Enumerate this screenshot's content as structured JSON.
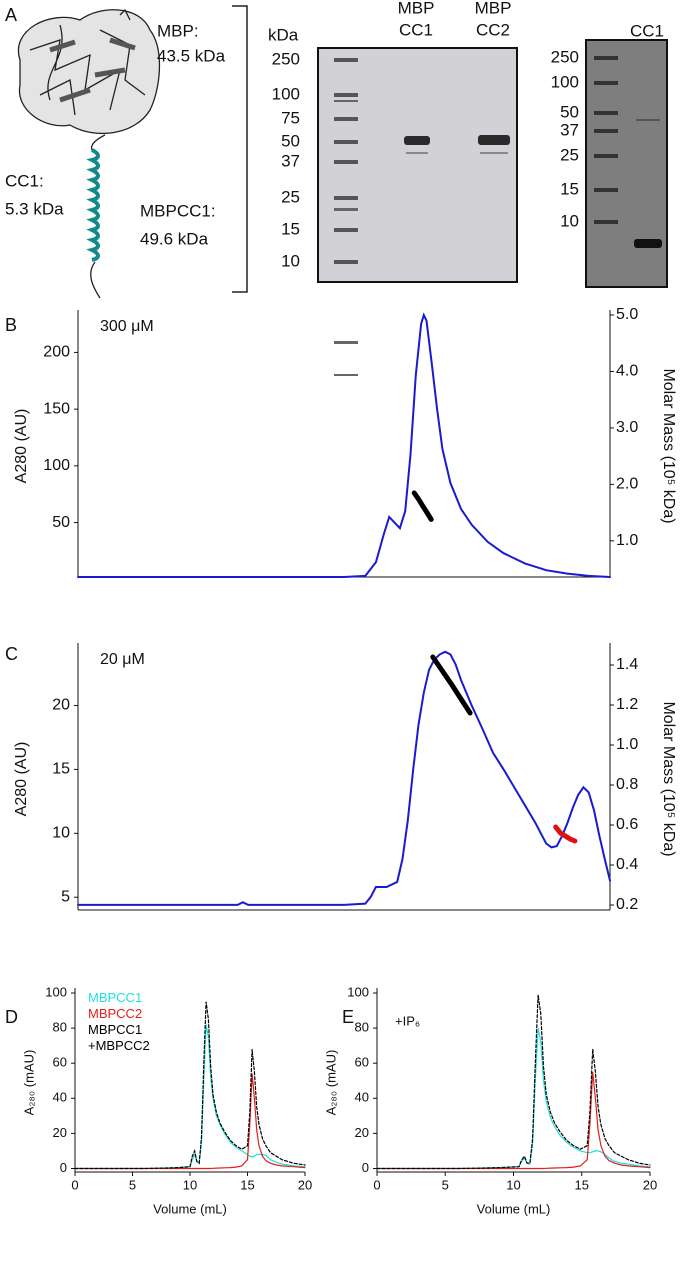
{
  "panel_a": {
    "label": "A",
    "structure_labels": [
      "MBP:",
      "43.5 kDa",
      "CC1:",
      "5.3 kDa",
      "MBPCC1:",
      "49.6 kDa"
    ],
    "gel1": {
      "unit": "kDa",
      "ladder": [
        "250",
        "100",
        "75",
        "50",
        "37",
        "25",
        "15",
        "10"
      ],
      "lanes": [
        [
          "MBP",
          "CC1"
        ],
        [
          "MBP",
          "CC2"
        ]
      ]
    },
    "gel2": {
      "ladder": [
        "250",
        "100",
        "50",
        "37",
        "25",
        "15",
        "10"
      ],
      "lanes": [
        "CC1"
      ]
    }
  },
  "chart_data": [
    {
      "type": "line",
      "panel_label": "B",
      "annotation": "300 μM",
      "ylabel": "A280 (AU)",
      "y2label": "Molar Mass (10⁵ kDa)",
      "xlim": [
        0,
        100
      ],
      "ylim": [
        2,
        233
      ],
      "yticks": [
        50,
        100,
        150,
        200
      ],
      "y2lim": [
        0.36,
        5.0
      ],
      "y2ticks": [
        {
          "value": 1,
          "label": "1.0"
        },
        {
          "value": 2,
          "label": "2.0"
        },
        {
          "value": 3,
          "label": "3.0"
        },
        {
          "value": 4,
          "label": "4.0"
        },
        {
          "value": 5,
          "label": "5.0"
        }
      ],
      "series": [
        {
          "color": "#1a1ad0",
          "x": [
            0,
            10,
            20,
            30,
            40,
            50,
            54,
            56,
            57.5,
            58.5,
            59.5,
            60.5,
            61.5,
            62.5,
            63.5,
            64.5,
            65,
            65.5,
            66.5,
            67.5,
            68.5,
            70,
            72,
            74,
            77,
            80,
            84,
            88,
            92,
            96,
            100
          ],
          "values": [
            2,
            2,
            2,
            2,
            2,
            2,
            3,
            15,
            40,
            55,
            50,
            45,
            60,
            110,
            180,
            225,
            233,
            228,
            190,
            150,
            115,
            85,
            62,
            48,
            33,
            23,
            14,
            8,
            5,
            3,
            2
          ]
        },
        {
          "color": "#000000",
          "axis": "y2",
          "x": [
            63.2,
            64,
            64.8,
            65.6,
            66.4
          ],
          "values": [
            1.85,
            1.74,
            1.62,
            1.5,
            1.38
          ]
        }
      ]
    },
    {
      "type": "line",
      "panel_label": "C",
      "annotation": "20 μM",
      "ylabel": "A280 (AU)",
      "y2label": "Molar Mass (10⁵ kDa)",
      "xlim": [
        0,
        100
      ],
      "ylim": [
        4,
        24.5
      ],
      "yticks": [
        5,
        10,
        15,
        20
      ],
      "y2lim": [
        0.175,
        1.485
      ],
      "y2ticks": [
        0.2,
        0.4,
        0.6,
        0.8,
        {
          "value": 1,
          "label": "1.0"
        },
        1.2,
        1.4
      ],
      "series": [
        {
          "color": "#1a1ad0",
          "x": [
            0,
            10,
            20,
            30,
            31,
            32,
            40,
            50,
            54,
            55,
            56,
            58,
            60,
            61,
            62,
            63,
            64,
            65,
            66,
            67,
            68,
            69,
            70,
            71,
            72,
            74,
            76,
            78,
            80,
            82,
            84,
            86,
            87,
            88,
            89,
            90,
            91,
            92,
            93,
            94,
            95,
            96,
            97,
            98,
            99,
            100
          ],
          "values": [
            4.4,
            4.4,
            4.4,
            4.4,
            4.6,
            4.4,
            4.4,
            4.4,
            4.5,
            5,
            5.8,
            5.8,
            6.2,
            8,
            11,
            15,
            18.5,
            21,
            22.8,
            23.6,
            24,
            24.2,
            24,
            23.2,
            22,
            20,
            18.2,
            16.3,
            15,
            13.6,
            12.2,
            10.8,
            10,
            9.2,
            8.9,
            9,
            9.8,
            10.8,
            12,
            13,
            13.6,
            13.2,
            11.8,
            9.8,
            8,
            6.3
          ]
        },
        {
          "color": "#000000",
          "axis": "y2",
          "x": [
            66.7,
            68.5,
            70.3,
            72,
            73.7
          ],
          "values": [
            1.44,
            1.37,
            1.3,
            1.23,
            1.16
          ]
        },
        {
          "color": "#e01010",
          "axis": "y2",
          "x": [
            89.8,
            90.7,
            91.6,
            92.5,
            93.4
          ],
          "values": [
            0.59,
            0.56,
            0.545,
            0.53,
            0.52
          ]
        }
      ]
    },
    {
      "type": "line",
      "panel_label": "D",
      "xlabel": "Volume (mL)",
      "ylabel": "A₂₈₀ (mAU)",
      "xlim": [
        0,
        20
      ],
      "xticks": [
        0,
        5,
        10,
        15,
        20
      ],
      "ylim": [
        -2,
        100
      ],
      "yticks": [
        0,
        20,
        40,
        60,
        80,
        100
      ],
      "x": [
        0,
        2,
        4,
        6,
        8,
        9,
        10,
        10.2,
        10.4,
        10.6,
        10.8,
        11,
        11.2,
        11.4,
        11.6,
        11.8,
        12,
        12.3,
        12.6,
        13,
        13.5,
        14,
        14.5,
        15,
        15.2,
        15.4,
        15.6,
        15.8,
        16,
        16.3,
        16.6,
        17,
        17.5,
        18,
        19,
        20
      ],
      "series": [
        {
          "name": "MBPCC1",
          "color": "#22dede",
          "values": [
            0,
            0,
            0,
            0,
            0.3,
            0.5,
            1,
            5,
            8,
            4,
            3,
            15,
            50,
            82,
            75,
            52,
            40,
            30,
            25,
            20,
            15,
            12,
            10,
            8,
            7,
            6.5,
            7,
            8,
            8,
            8,
            7.5,
            5,
            3.5,
            2.5,
            1.5,
            1
          ]
        },
        {
          "name": "MBPCC2",
          "color": "#e0201c",
          "values": [
            0,
            0,
            0,
            0,
            0,
            0,
            0,
            0,
            0,
            0,
            0,
            0,
            0,
            0,
            0,
            0,
            0.1,
            0.2,
            0.3,
            0.4,
            0.5,
            0.8,
            1.5,
            5,
            25,
            54,
            40,
            22,
            13,
            7,
            4.5,
            3,
            2,
            1.5,
            1,
            0.5
          ]
        },
        {
          "name": "MBPCC1 +MBPCC2",
          "color": "#000000",
          "dashed": true,
          "values": [
            0,
            0,
            0,
            0,
            0.3,
            0.5,
            1,
            7,
            10,
            4,
            3,
            18,
            60,
            95,
            85,
            58,
            42,
            32,
            26,
            21,
            16,
            13,
            11,
            13,
            32,
            68,
            55,
            35,
            25,
            17,
            13,
            9,
            7,
            5,
            3,
            2
          ]
        }
      ]
    },
    {
      "type": "line",
      "panel_label": "E",
      "annotation": "+IP₆",
      "xlabel": "Volume (mL)",
      "ylabel": "A₂₈₀ (mAU)",
      "xlim": [
        0,
        20
      ],
      "xticks": [
        0,
        5,
        10,
        15,
        20
      ],
      "ylim": [
        -2,
        100
      ],
      "yticks": [
        0,
        20,
        40,
        60,
        80,
        100
      ],
      "x": [
        0,
        2,
        4,
        6,
        8,
        9,
        10.4,
        10.6,
        10.8,
        11,
        11.2,
        11.4,
        11.6,
        11.8,
        12,
        12.2,
        12.4,
        12.7,
        13,
        13.4,
        13.9,
        14.4,
        14.9,
        15.4,
        15.6,
        15.8,
        16,
        16.2,
        16.4,
        16.7,
        17,
        17.4,
        17.9,
        18.4,
        19.2,
        20
      ],
      "series": [
        {
          "color": "#22dede",
          "values": [
            0,
            0,
            0,
            0,
            0.3,
            0.5,
            1,
            4,
            6,
            3,
            2.5,
            14,
            50,
            80,
            72,
            50,
            38,
            29,
            24,
            19,
            15,
            12,
            10,
            9,
            9,
            9.5,
            10,
            10,
            9.5,
            8,
            6,
            4,
            3,
            2.5,
            1.5,
            1
          ]
        },
        {
          "color": "#e0201c",
          "values": [
            0,
            0,
            0,
            0,
            0,
            0,
            0,
            0,
            0,
            0,
            0,
            0,
            0,
            0,
            0,
            0,
            0.1,
            0.2,
            0.3,
            0.4,
            0.5,
            0.8,
            1.5,
            5,
            25,
            55,
            40,
            22,
            13,
            7,
            4.5,
            3,
            2,
            1.5,
            1,
            0.5
          ]
        },
        {
          "color": "#000000",
          "dashed": true,
          "values": [
            0,
            0,
            0,
            0,
            0.3,
            0.5,
            1,
            5,
            7,
            3,
            3,
            17,
            60,
            99,
            88,
            58,
            42,
            32,
            26,
            21,
            16,
            13,
            11,
            13,
            32,
            68,
            55,
            35,
            25,
            17,
            13,
            9,
            7,
            5,
            3,
            2
          ]
        }
      ]
    }
  ]
}
